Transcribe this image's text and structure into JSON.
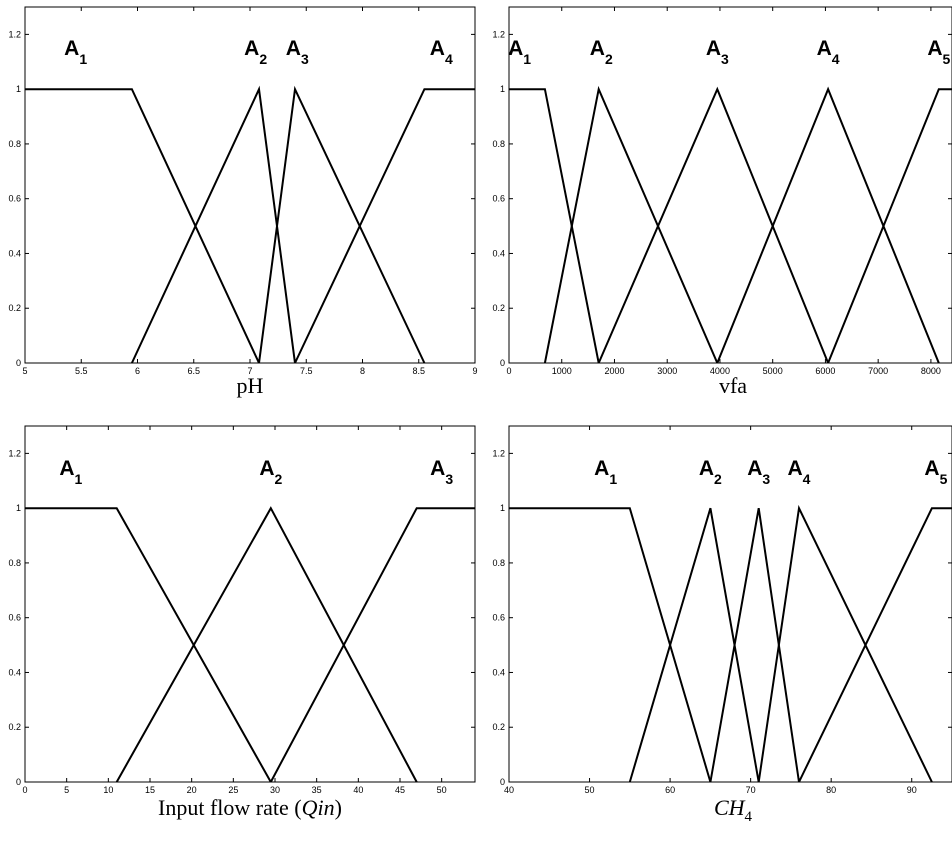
{
  "chart_data": [
    {
      "type": "line",
      "xlabel": "pH",
      "xlim": [
        5,
        9
      ],
      "ylim": [
        0,
        1.3
      ],
      "xticks": [
        "5",
        "5.5",
        "6",
        "6.5",
        "7",
        "7.5",
        "8",
        "8.5",
        "9"
      ],
      "yticks": [
        "0",
        "0.2",
        "0.4",
        "0.6",
        "0.8",
        "1",
        "1.2"
      ],
      "grid": false,
      "sets": [
        {
          "name": "A",
          "sub": "1",
          "label_x": 5.45,
          "points": [
            [
              5,
              1
            ],
            [
              5.95,
              1
            ],
            [
              7.08,
              0
            ]
          ]
        },
        {
          "name": "A",
          "sub": "2",
          "label_x": 7.05,
          "points": [
            [
              5.95,
              0
            ],
            [
              7.08,
              1
            ],
            [
              7.4,
              0
            ]
          ]
        },
        {
          "name": "A",
          "sub": "3",
          "label_x": 7.42,
          "points": [
            [
              7.08,
              0
            ],
            [
              7.4,
              1
            ],
            [
              8.55,
              0
            ]
          ]
        },
        {
          "name": "A",
          "sub": "4",
          "label_x": 8.7,
          "points": [
            [
              7.4,
              0
            ],
            [
              8.55,
              1
            ],
            [
              9,
              1
            ]
          ]
        }
      ]
    },
    {
      "type": "line",
      "xlabel": "vfa",
      "xlim": [
        0,
        8400
      ],
      "ylim": [
        0,
        1.3
      ],
      "xticks": [
        "0",
        "1000",
        "2000",
        "3000",
        "4000",
        "5000",
        "6000",
        "7000",
        "8000"
      ],
      "yticks": [
        "0",
        "0.2",
        "0.4",
        "0.6",
        "0.8",
        "1",
        "1.2"
      ],
      "grid": false,
      "sets": [
        {
          "name": "A",
          "sub": "1",
          "label_x": 200,
          "points": [
            [
              0,
              1
            ],
            [
              680,
              1
            ],
            [
              1700,
              0
            ]
          ]
        },
        {
          "name": "A",
          "sub": "2",
          "label_x": 1750,
          "points": [
            [
              680,
              0
            ],
            [
              1700,
              1
            ],
            [
              3950,
              0
            ]
          ]
        },
        {
          "name": "A",
          "sub": "3",
          "label_x": 3950,
          "points": [
            [
              1700,
              0
            ],
            [
              3950,
              1
            ],
            [
              6050,
              0
            ]
          ]
        },
        {
          "name": "A",
          "sub": "4",
          "label_x": 6050,
          "points": [
            [
              3950,
              0
            ],
            [
              6050,
              1
            ],
            [
              8150,
              0
            ]
          ]
        },
        {
          "name": "A",
          "sub": "5",
          "label_x": 8150,
          "points": [
            [
              6050,
              0
            ],
            [
              8150,
              1
            ],
            [
              8400,
              1
            ]
          ]
        }
      ]
    },
    {
      "type": "line",
      "xlabel": "Input flow rate (",
      "xlabel_italic": "Qin",
      "xlabel_end": ")",
      "xlim": [
        0,
        54
      ],
      "ylim": [
        0,
        1.3
      ],
      "xticks": [
        "0",
        "5",
        "10",
        "15",
        "20",
        "25",
        "30",
        "35",
        "40",
        "45",
        "50"
      ],
      "yticks": [
        "0",
        "0.2",
        "0.4",
        "0.6",
        "0.8",
        "1",
        "1.2"
      ],
      "grid": false,
      "sets": [
        {
          "name": "A",
          "sub": "1",
          "label_x": 5.5,
          "points": [
            [
              0,
              1
            ],
            [
              11,
              1
            ],
            [
              29.5,
              0
            ]
          ]
        },
        {
          "name": "A",
          "sub": "2",
          "label_x": 29.5,
          "points": [
            [
              11,
              0
            ],
            [
              29.5,
              1
            ],
            [
              47,
              0
            ]
          ]
        },
        {
          "name": "A",
          "sub": "3",
          "label_x": 50,
          "points": [
            [
              29.5,
              0
            ],
            [
              47,
              1
            ],
            [
              54,
              1
            ]
          ]
        }
      ]
    },
    {
      "type": "line",
      "xlabel": "CH",
      "xlabel_sub": "4",
      "xlim": [
        40,
        95
      ],
      "ylim": [
        0,
        1.3
      ],
      "xticks": [
        "40",
        "50",
        "60",
        "70",
        "80",
        "90"
      ],
      "yticks": [
        "0",
        "0.2",
        "0.4",
        "0.6",
        "0.8",
        "1",
        "1.2"
      ],
      "grid": false,
      "sets": [
        {
          "name": "A",
          "sub": "1",
          "label_x": 52,
          "points": [
            [
              40,
              1
            ],
            [
              55,
              1
            ],
            [
              65,
              0
            ]
          ]
        },
        {
          "name": "A",
          "sub": "2",
          "label_x": 65,
          "points": [
            [
              55,
              0
            ],
            [
              65,
              1
            ],
            [
              71,
              0
            ]
          ]
        },
        {
          "name": "A",
          "sub": "3",
          "label_x": 71,
          "points": [
            [
              65,
              0
            ],
            [
              71,
              1
            ],
            [
              76,
              0
            ]
          ]
        },
        {
          "name": "A",
          "sub": "4",
          "label_x": 76,
          "points": [
            [
              71,
              0
            ],
            [
              76,
              1
            ],
            [
              92.5,
              0
            ]
          ]
        },
        {
          "name": "A",
          "sub": "5",
          "label_x": 93,
          "points": [
            [
              76,
              0
            ],
            [
              92.5,
              1
            ],
            [
              95,
              1
            ]
          ]
        }
      ]
    }
  ]
}
